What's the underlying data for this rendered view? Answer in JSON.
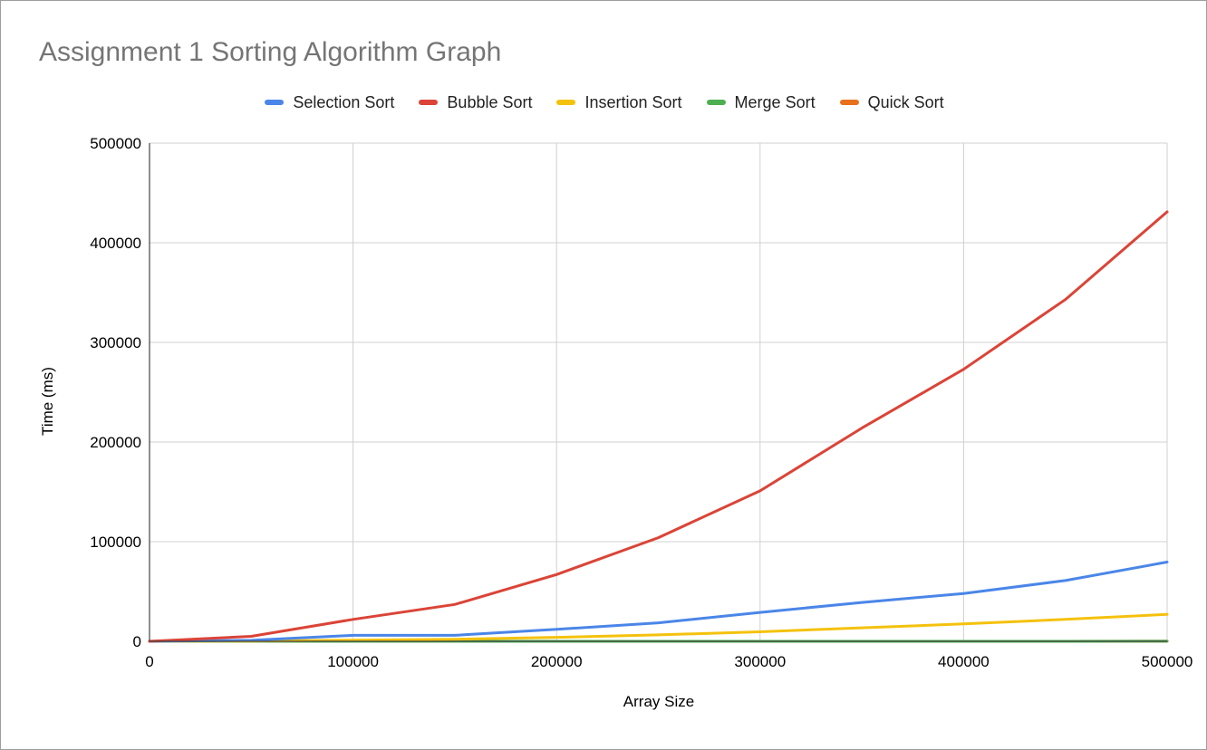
{
  "chart_data": {
    "type": "line",
    "title": "Assignment 1 Sorting Algorithm Graph",
    "xlabel": "Array Size",
    "ylabel": "Time (ms)",
    "xlim": [
      0,
      500000
    ],
    "ylim": [
      0,
      500000
    ],
    "x_ticks": [
      "0",
      "100000",
      "200000",
      "300000",
      "400000",
      "500000"
    ],
    "y_ticks": [
      "0",
      "100000",
      "200000",
      "300000",
      "400000",
      "500000"
    ],
    "grid": true,
    "legend_position": "top",
    "x": [
      0,
      50000,
      100000,
      150000,
      200000,
      250000,
      300000,
      350000,
      400000,
      450000,
      500000
    ],
    "series": [
      {
        "name": "Selection Sort",
        "color": "#4a86e8",
        "values": [
          0,
          1000,
          6000,
          6000,
          12000,
          18500,
          29000,
          39000,
          48000,
          61000,
          79500
        ]
      },
      {
        "name": "Bubble Sort",
        "color": "#db4437",
        "values": [
          0,
          5000,
          22000,
          37000,
          67000,
          104000,
          151000,
          214000,
          273000,
          343000,
          431000
        ]
      },
      {
        "name": "Insertion Sort",
        "color": "#f4c20d",
        "values": [
          0,
          300,
          1200,
          2000,
          4000,
          6500,
          9500,
          13500,
          17500,
          22000,
          27000
        ]
      },
      {
        "name": "Merge Sort",
        "color": "#4caf50",
        "values": [
          0,
          5,
          10,
          15,
          20,
          25,
          30,
          35,
          40,
          45,
          50
        ]
      },
      {
        "name": "Quick Sort",
        "color": "#e8711c",
        "values": [
          0,
          5,
          10,
          15,
          20,
          25,
          30,
          35,
          40,
          45,
          50
        ]
      }
    ]
  }
}
